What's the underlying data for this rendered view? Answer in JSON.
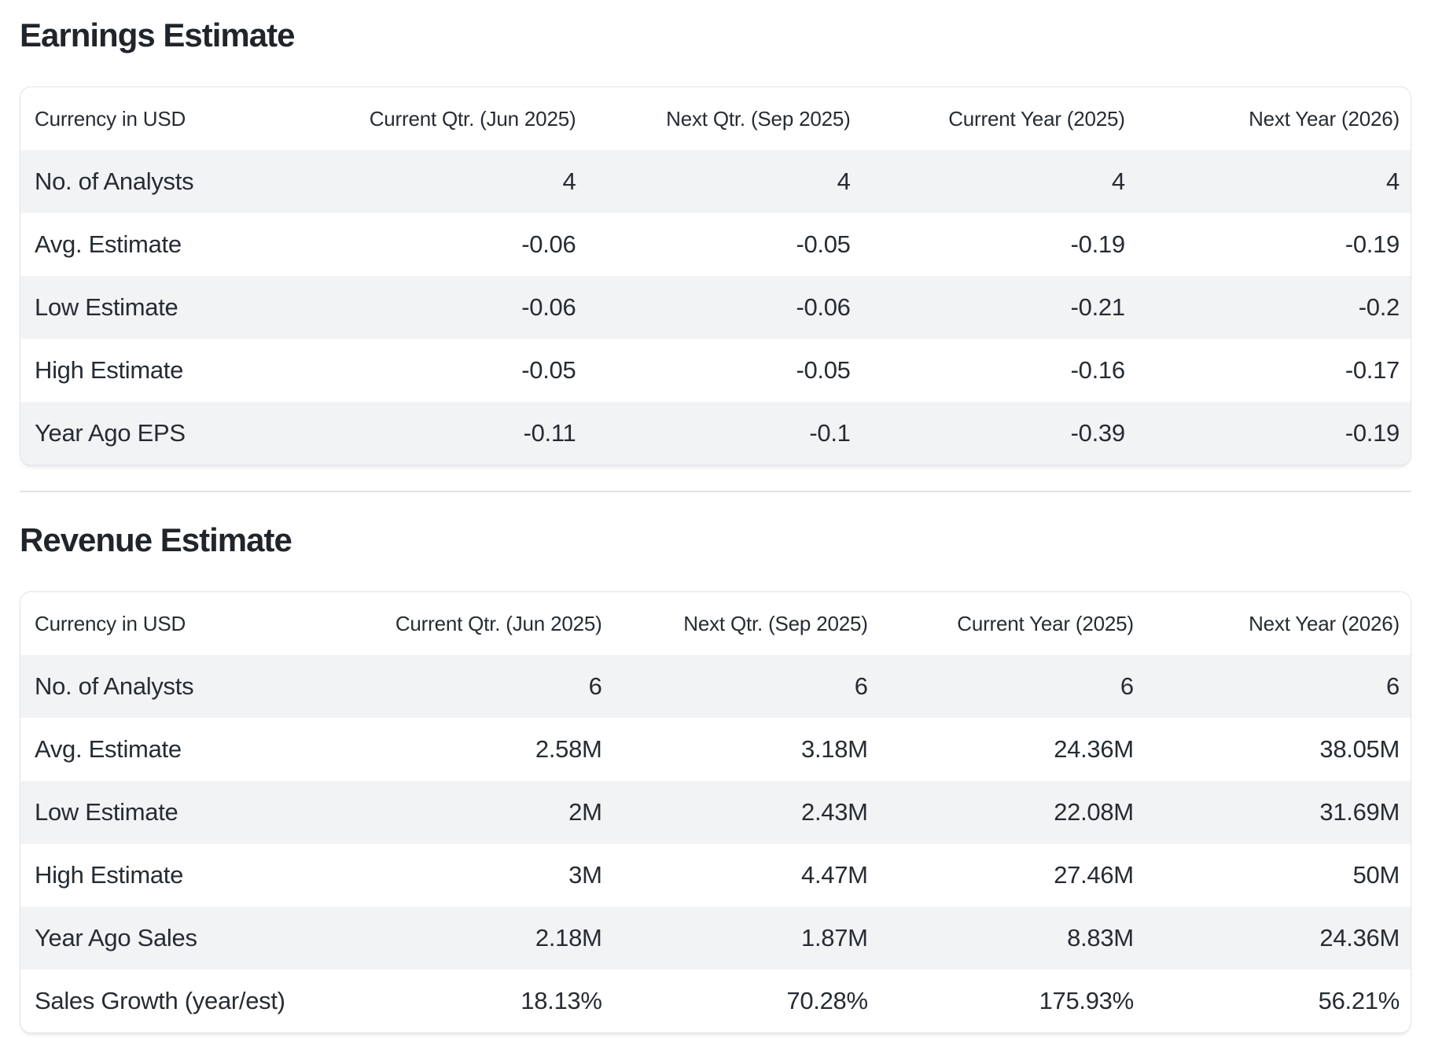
{
  "colors": {
    "stripe": "#f2f3f5",
    "border": "#e0e3e8",
    "text": "#262c33",
    "heading": "#20252b",
    "divider": "#e2e3e6"
  },
  "sections": [
    {
      "title": "Earnings Estimate",
      "table": {
        "columns": [
          "Currency in USD",
          "Current Qtr. (Jun 2025)",
          "Next Qtr. (Sep 2025)",
          "Current Year (2025)",
          "Next Year (2026)"
        ],
        "rows": [
          {
            "label": "No. of Analysts",
            "values": [
              "4",
              "4",
              "4",
              "4"
            ]
          },
          {
            "label": "Avg. Estimate",
            "values": [
              "-0.06",
              "-0.05",
              "-0.19",
              "-0.19"
            ]
          },
          {
            "label": "Low Estimate",
            "values": [
              "-0.06",
              "-0.06",
              "-0.21",
              "-0.2"
            ]
          },
          {
            "label": "High Estimate",
            "values": [
              "-0.05",
              "-0.05",
              "-0.16",
              "-0.17"
            ]
          },
          {
            "label": "Year Ago EPS",
            "values": [
              "-0.11",
              "-0.1",
              "-0.39",
              "-0.19"
            ]
          }
        ]
      }
    },
    {
      "title": "Revenue Estimate",
      "table": {
        "columns": [
          "Currency in USD",
          "Current Qtr. (Jun 2025)",
          "Next Qtr. (Sep 2025)",
          "Current Year (2025)",
          "Next Year (2026)"
        ],
        "rows": [
          {
            "label": "No. of Analysts",
            "values": [
              "6",
              "6",
              "6",
              "6"
            ]
          },
          {
            "label": "Avg. Estimate",
            "values": [
              "2.58M",
              "3.18M",
              "24.36M",
              "38.05M"
            ]
          },
          {
            "label": "Low Estimate",
            "values": [
              "2M",
              "2.43M",
              "22.08M",
              "31.69M"
            ]
          },
          {
            "label": "High Estimate",
            "values": [
              "3M",
              "4.47M",
              "27.46M",
              "50M"
            ]
          },
          {
            "label": "Year Ago Sales",
            "values": [
              "2.18M",
              "1.87M",
              "8.83M",
              "24.36M"
            ]
          },
          {
            "label": "Sales Growth (year/est)",
            "values": [
              "18.13%",
              "70.28%",
              "175.93%",
              "56.21%"
            ]
          }
        ]
      }
    }
  ]
}
